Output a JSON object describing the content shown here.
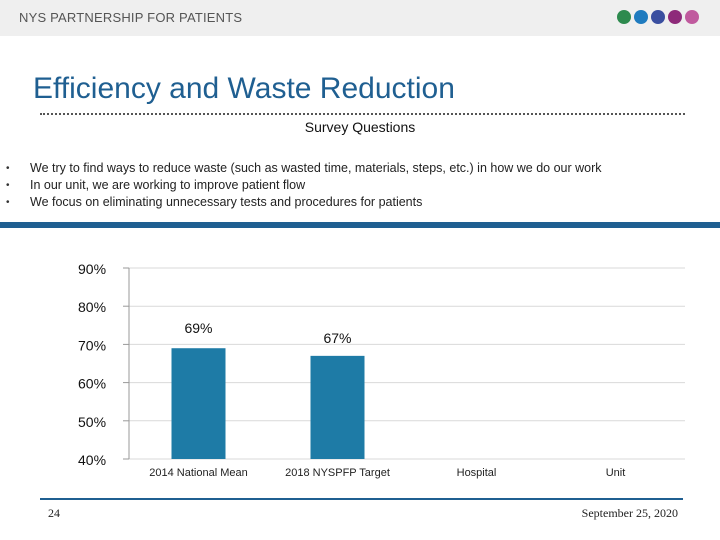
{
  "header": {
    "org_name": "NYS PARTNERSHIP FOR PATIENTS",
    "logo_dot_colors": [
      "#2d8a4e",
      "#1f7bbf",
      "#3a4fa0",
      "#8e2a7a",
      "#c05a9e"
    ]
  },
  "slide": {
    "title": "Efficiency and Waste Reduction",
    "subtitle": "Survey Questions",
    "bullets": [
      "We try to find ways to reduce waste (such as wasted time, materials, steps, etc.) in how we do our work",
      "In our unit, we are working to improve patient flow",
      "We focus on eliminating unnecessary tests and procedures for patients"
    ]
  },
  "footer": {
    "page_number": "24",
    "date": "September 25, 2020"
  },
  "colors": {
    "accent": "#1f5f91",
    "bar": "#1e7ba6"
  },
  "chart_data": {
    "type": "bar",
    "categories": [
      "2014 National Mean",
      "2018 NYSPFP Target",
      "Hospital",
      "Unit"
    ],
    "values": [
      69,
      67,
      null,
      null
    ],
    "data_labels": [
      "69%",
      "67%",
      "",
      ""
    ],
    "ylim": [
      40,
      90
    ],
    "y_ticks": [
      "90%",
      "80%",
      "70%",
      "60%",
      "50%",
      "40%"
    ],
    "y_tick_values": [
      90,
      80,
      70,
      60,
      50,
      40
    ],
    "grid": true
  }
}
